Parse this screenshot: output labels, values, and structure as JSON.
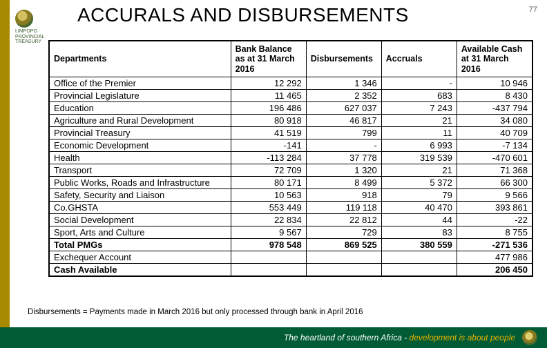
{
  "page_number": "77",
  "title": "ACCURALS AND DISBURSEMENTS",
  "logo": {
    "line1": "LIMPOPO",
    "line2": "PROVINCIAL TREASURY"
  },
  "table": {
    "columns": [
      "Departments",
      "Bank Balance as at 31 March 2016",
      "Disbursements",
      "Accruals",
      "Available Cash at 31 March 2016"
    ],
    "rows": [
      {
        "dept": "Office of the Premier",
        "c1": "12 292",
        "c2": "1 346",
        "c3": "-",
        "c4": "10 946"
      },
      {
        "dept": "Provincial Legislature",
        "c1": "11 465",
        "c2": "2 352",
        "c3": "683",
        "c4": "8 430"
      },
      {
        "dept": "Education",
        "c1": "196 486",
        "c2": "627 037",
        "c3": "7 243",
        "c4": "-437 794"
      },
      {
        "dept": "Agriculture and Rural Development",
        "c1": "80 918",
        "c2": "46 817",
        "c3": "21",
        "c4": "34 080"
      },
      {
        "dept": "Provincial Treasury",
        "c1": "41 519",
        "c2": "799",
        "c3": "11",
        "c4": "40 709"
      },
      {
        "dept": "Economic Development",
        "c1": "-141",
        "c2": "-",
        "c3": "6 993",
        "c4": "-7 134"
      },
      {
        "dept": "Health",
        "c1": "-113 284",
        "c2": "37 778",
        "c3": "319 539",
        "c4": "-470 601"
      },
      {
        "dept": "Transport",
        "c1": "72 709",
        "c2": "1 320",
        "c3": "21",
        "c4": "71 368"
      },
      {
        "dept": "Public Works, Roads and Infrastructure",
        "c1": "80 171",
        "c2": "8 499",
        "c3": "5 372",
        "c4": "66 300"
      },
      {
        "dept": "Safety, Security and Liaison",
        "c1": "10 563",
        "c2": "918",
        "c3": "79",
        "c4": "9 566"
      },
      {
        "dept": "Co.GHSTA",
        "c1": "553 449",
        "c2": "119 118",
        "c3": "40 470",
        "c4": "393 861"
      },
      {
        "dept": "Social Development",
        "c1": "22 834",
        "c2": "22 812",
        "c3": "44",
        "c4": "-22"
      },
      {
        "dept": "Sport, Arts and Culture",
        "c1": "9 567",
        "c2": "729",
        "c3": "83",
        "c4": "8 755"
      }
    ],
    "total_row": {
      "dept": "Total PMGs",
      "c1": "978 548",
      "c2": "869 525",
      "c3": "380 559",
      "c4": "-271 536"
    },
    "exchequer_row": {
      "dept": "Exchequer Account",
      "c1": "",
      "c2": "",
      "c3": "",
      "c4": "477 986"
    },
    "cash_row": {
      "dept": "Cash Available",
      "c1": "",
      "c2": "",
      "c3": "",
      "c4": "206 450"
    }
  },
  "footnote": "Disbursements = Payments made in March 2016 but only processed through bank in April 2016",
  "footer": {
    "prefix": "The heartland of southern Africa - ",
    "accent": "development is about people"
  },
  "colors": {
    "stripe": "#a88a00",
    "footer_bg": "#015c35",
    "footer_text": "#ffffff",
    "accent_text": "#e8b000"
  }
}
